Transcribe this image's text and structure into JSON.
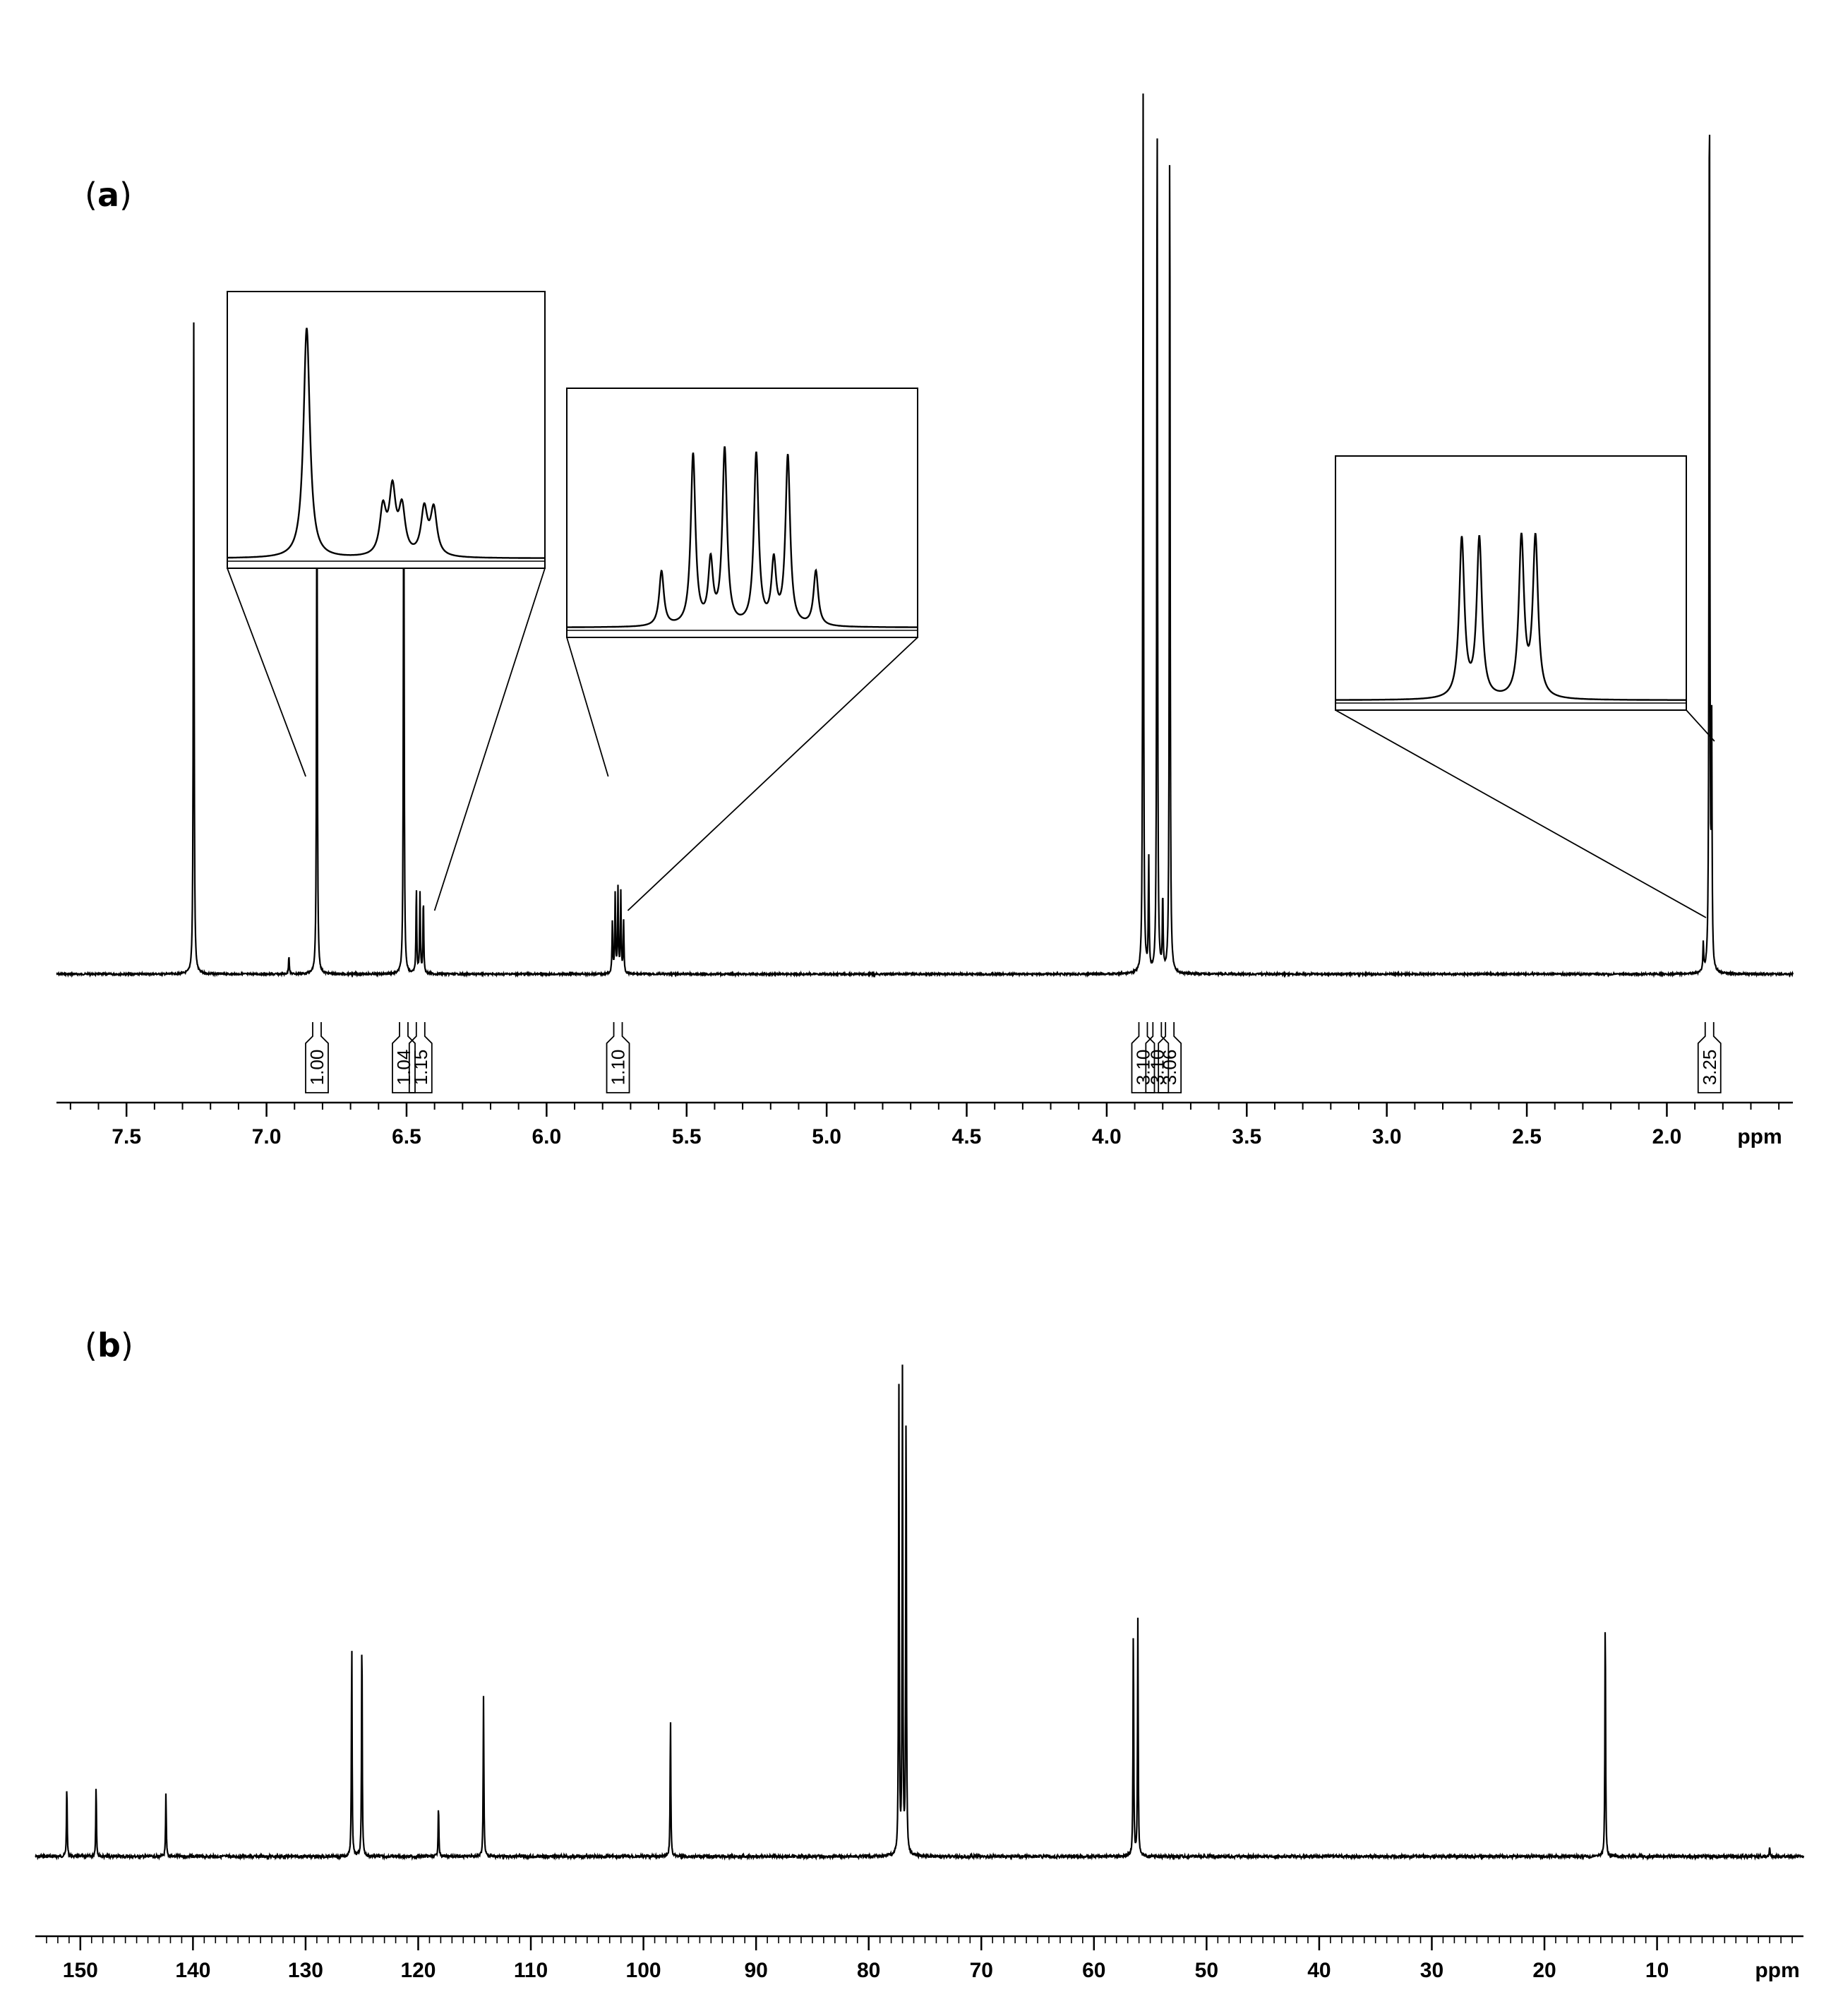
{
  "chart_data": [
    {
      "type": "line",
      "panel_label": "a",
      "xlabel": "ppm",
      "xlim": [
        7.75,
        1.55
      ],
      "x_ticks": [
        7.5,
        7.0,
        6.5,
        6.0,
        5.5,
        5.0,
        4.5,
        4.0,
        3.5,
        3.0,
        2.5,
        2.0
      ],
      "x_tick_labels": [
        "7.5",
        "7.0",
        "6.5",
        "6.0",
        "5.5",
        "5.0",
        "4.5",
        "4.0",
        "3.5",
        "3.0",
        "2.5",
        "2.0"
      ],
      "peaks": [
        {
          "ppm": 7.26,
          "height": 0.7
        },
        {
          "ppm": 6.92,
          "height": 0.02
        },
        {
          "ppm": 6.82,
          "height": 0.6
        },
        {
          "ppm": 6.51,
          "height": 0.61
        },
        {
          "ppm": 6.465,
          "height": 0.09
        },
        {
          "ppm": 6.452,
          "height": 0.085
        },
        {
          "ppm": 6.44,
          "height": 0.08
        },
        {
          "ppm": 5.765,
          "height": 0.055
        },
        {
          "ppm": 5.755,
          "height": 0.085
        },
        {
          "ppm": 5.745,
          "height": 0.09
        },
        {
          "ppm": 5.735,
          "height": 0.085
        },
        {
          "ppm": 5.725,
          "height": 0.055
        },
        {
          "ppm": 3.87,
          "height": 0.93
        },
        {
          "ppm": 3.85,
          "height": 0.12
        },
        {
          "ppm": 3.82,
          "height": 0.95
        },
        {
          "ppm": 3.8,
          "height": 0.08
        },
        {
          "ppm": 3.775,
          "height": 0.92
        },
        {
          "ppm": 1.87,
          "height": 0.03
        },
        {
          "ppm": 1.848,
          "height": 1.0
        },
        {
          "ppm": 1.84,
          "height": 0.25
        }
      ],
      "integrals": [
        {
          "ppm": 6.82,
          "label": "1.00"
        },
        {
          "ppm": 6.51,
          "label": "1.04"
        },
        {
          "ppm": 6.45,
          "label": "1.15"
        },
        {
          "ppm": 5.745,
          "label": "1.10"
        },
        {
          "ppm": 3.87,
          "label": "3.10"
        },
        {
          "ppm": 3.82,
          "label": "3.10"
        },
        {
          "ppm": 3.775,
          "label": "3.06"
        },
        {
          "ppm": 1.848,
          "label": "3.25"
        }
      ],
      "insets": [
        {
          "range": [
            6.86,
            6.4
          ],
          "peaks": [
            {
              "x": 0.25,
              "h": 0.9,
              "w": 0.012
            },
            {
              "x": 0.49,
              "h": 0.18,
              "w": 0.012
            },
            {
              "x": 0.52,
              "h": 0.25,
              "w": 0.012
            },
            {
              "x": 0.55,
              "h": 0.18,
              "w": 0.012
            },
            {
              "x": 0.62,
              "h": 0.18,
              "w": 0.012
            },
            {
              "x": 0.65,
              "h": 0.18,
              "w": 0.012
            }
          ]
        },
        {
          "range": [
            5.78,
            5.71
          ],
          "peaks": [
            {
              "x": 0.27,
              "h": 0.24,
              "w": 0.008
            },
            {
              "x": 0.36,
              "h": 0.75,
              "w": 0.008
            },
            {
              "x": 0.41,
              "h": 0.27,
              "w": 0.008
            },
            {
              "x": 0.45,
              "h": 0.77,
              "w": 0.008
            },
            {
              "x": 0.54,
              "h": 0.75,
              "w": 0.008
            },
            {
              "x": 0.59,
              "h": 0.27,
              "w": 0.008
            },
            {
              "x": 0.63,
              "h": 0.74,
              "w": 0.008
            },
            {
              "x": 0.71,
              "h": 0.24,
              "w": 0.008
            }
          ]
        },
        {
          "range": [
            1.86,
            1.83
          ],
          "peaks": [
            {
              "x": 0.36,
              "h": 0.68,
              "w": 0.009
            },
            {
              "x": 0.41,
              "h": 0.68,
              "w": 0.009
            },
            {
              "x": 0.53,
              "h": 0.68,
              "w": 0.009
            },
            {
              "x": 0.57,
              "h": 0.68,
              "w": 0.009
            }
          ]
        }
      ]
    },
    {
      "type": "line",
      "panel_label": "b",
      "xlabel": "ppm",
      "xlim": [
        154,
        -3
      ],
      "x_ticks": [
        150,
        140,
        130,
        120,
        110,
        100,
        90,
        80,
        70,
        60,
        50,
        40,
        30,
        20,
        10
      ],
      "x_tick_labels": [
        "150",
        "140",
        "130",
        "120",
        "110",
        "100",
        "90",
        "80",
        "70",
        "60",
        "50",
        "40",
        "30",
        "20",
        "10"
      ],
      "peaks": [
        {
          "ppm": 151.2,
          "height": 0.15
        },
        {
          "ppm": 148.6,
          "height": 0.15
        },
        {
          "ppm": 142.4,
          "height": 0.13
        },
        {
          "ppm": 125.9,
          "height": 0.45
        },
        {
          "ppm": 125.0,
          "height": 0.47
        },
        {
          "ppm": 118.2,
          "height": 0.11
        },
        {
          "ppm": 114.2,
          "height": 0.33
        },
        {
          "ppm": 97.6,
          "height": 0.29
        },
        {
          "ppm": 77.32,
          "height": 0.96
        },
        {
          "ppm": 77.0,
          "height": 1.0
        },
        {
          "ppm": 76.68,
          "height": 0.95
        },
        {
          "ppm": 56.5,
          "height": 0.48
        },
        {
          "ppm": 56.1,
          "height": 0.49
        },
        {
          "ppm": 14.6,
          "height": 0.51
        },
        {
          "ppm": 0.0,
          "height": 0.02
        }
      ]
    }
  ]
}
